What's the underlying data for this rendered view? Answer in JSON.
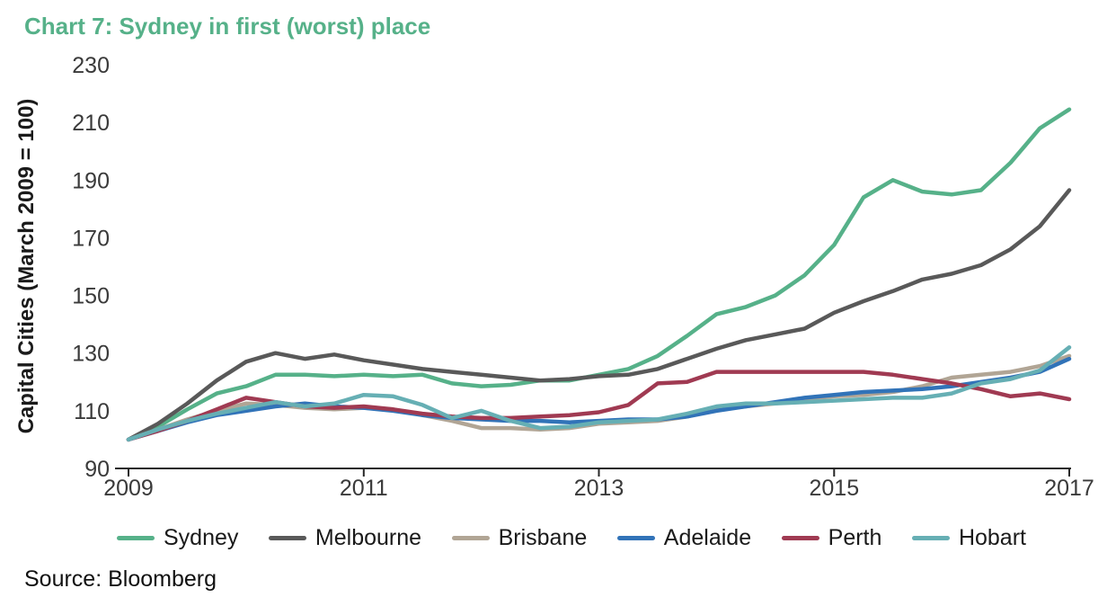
{
  "header": {
    "title": "Chart 7: Sydney in first (worst) place"
  },
  "source": "Source: Bloomberg",
  "colors": {
    "title": "#56b189",
    "axis": "#262626",
    "tick_text": "#3a3a3a",
    "text": "#1a1a1a"
  },
  "chart_data": {
    "type": "line",
    "title": "Chart 7: Sydney in first (worst) place",
    "ylabel": "Capital Cities (March 2009 = 100)",
    "xlabel": "",
    "ylim": [
      90,
      230
    ],
    "xlim": [
      2009,
      2017
    ],
    "yticks": [
      90,
      110,
      130,
      150,
      170,
      190,
      210,
      230
    ],
    "xticks": [
      2009,
      2011,
      2013,
      2015,
      2017
    ],
    "grid": false,
    "legend_position": "bottom",
    "x": [
      2009,
      2009.25,
      2009.5,
      2009.75,
      2010,
      2010.25,
      2010.5,
      2010.75,
      2011,
      2011.25,
      2011.5,
      2011.75,
      2012,
      2012.25,
      2012.5,
      2012.75,
      2013,
      2013.25,
      2013.5,
      2013.75,
      2014,
      2014.25,
      2014.5,
      2014.75,
      2015,
      2015.25,
      2015.5,
      2015.75,
      2016,
      2016.25,
      2016.5,
      2016.75,
      2017
    ],
    "series": [
      {
        "name": "Sydney",
        "color": "#56b189",
        "values": [
          100,
          104.5,
          110.5,
          116,
          118.5,
          122.5,
          122.5,
          122,
          122.5,
          122,
          122.5,
          119.5,
          118.5,
          119,
          120.5,
          120.5,
          122.5,
          124.5,
          129,
          136,
          143.5,
          146,
          150,
          157,
          167.5,
          184,
          190,
          186,
          185,
          186.5,
          196,
          208,
          214.5
        ]
      },
      {
        "name": "Melbourne",
        "color": "#595959",
        "values": [
          100,
          105.5,
          112.5,
          120.5,
          127,
          130,
          128,
          129.5,
          127.5,
          126,
          124.5,
          123.5,
          122.5,
          121.5,
          120.5,
          121,
          122,
          122.5,
          124.5,
          128,
          131.5,
          134.5,
          136.5,
          138.5,
          144,
          148,
          151.5,
          155.5,
          157.5,
          160.5,
          166,
          174,
          186.5
        ]
      },
      {
        "name": "Brisbane",
        "color": "#b1a595",
        "values": [
          100,
          103.5,
          107,
          110,
          112.5,
          112,
          111,
          110.5,
          111,
          110.5,
          108.5,
          106.5,
          104,
          104,
          103.5,
          104,
          105.5,
          106,
          106.5,
          108,
          110.5,
          111.5,
          112.5,
          114,
          115,
          115.5,
          116.5,
          118.5,
          121.5,
          122.5,
          123.5,
          125.5,
          129
        ]
      },
      {
        "name": "Adelaide",
        "color": "#3173b8",
        "values": [
          100,
          103,
          106,
          108.5,
          110,
          111.5,
          112.5,
          111.5,
          111,
          110,
          108.5,
          107.5,
          107,
          106.5,
          106.5,
          106,
          106.5,
          107,
          107,
          108,
          110,
          111.5,
          113,
          114.5,
          115.5,
          116.5,
          117,
          117.5,
          118.5,
          120,
          121.5,
          123.5,
          128
        ]
      },
      {
        "name": "Perth",
        "color": "#a03a52",
        "values": [
          100,
          103,
          106.5,
          110.5,
          114.5,
          113,
          111.5,
          111,
          111.5,
          110.5,
          109,
          108,
          107.5,
          107.5,
          108,
          108.5,
          109.5,
          112,
          119.5,
          120,
          123.5,
          123.5,
          123.5,
          123.5,
          123.5,
          123.5,
          122.5,
          121,
          119.5,
          117.5,
          115,
          116,
          114
        ]
      },
      {
        "name": "Hobart",
        "color": "#66afb4",
        "values": [
          100,
          103.5,
          106.5,
          109,
          111,
          113,
          111.5,
          112.5,
          115.5,
          115,
          112,
          107.5,
          110,
          106.5,
          104,
          104.5,
          106,
          106.5,
          107,
          109,
          111.5,
          112.5,
          112.5,
          113,
          113.5,
          114,
          114.5,
          114.5,
          116,
          119.5,
          121,
          124,
          132
        ]
      }
    ]
  }
}
